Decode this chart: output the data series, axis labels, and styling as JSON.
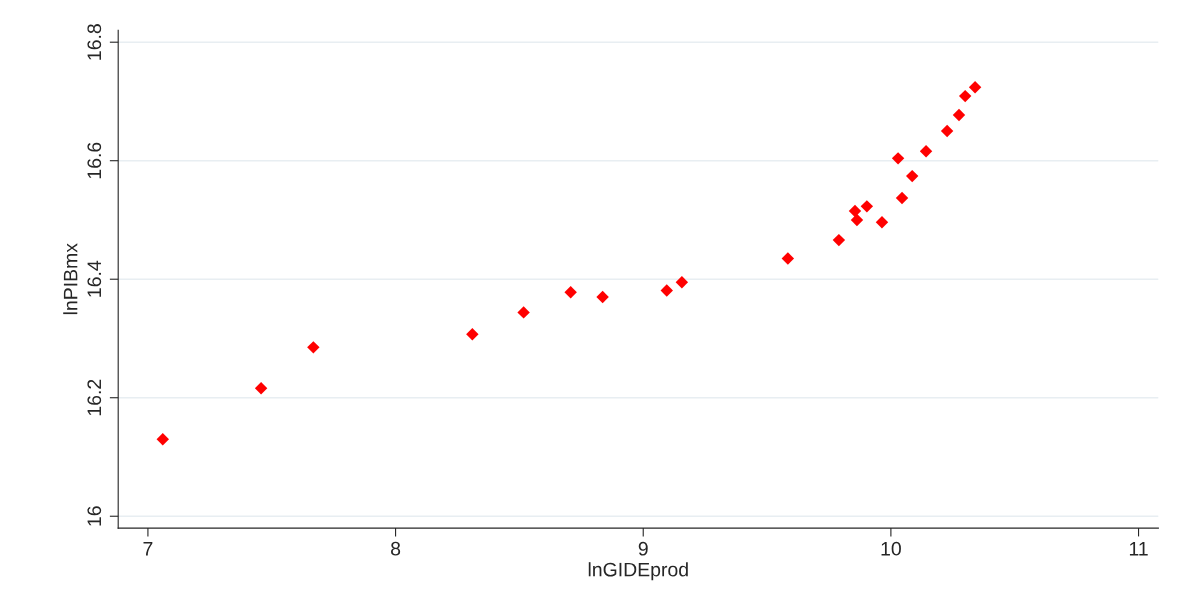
{
  "chart_data": {
    "type": "scatter",
    "xlabel": "lnGIDEprod",
    "ylabel": "lnPIBmx",
    "x": [
      7.06,
      7.457,
      7.668,
      8.31,
      8.517,
      8.707,
      8.836,
      9.095,
      9.156,
      9.584,
      9.79,
      9.855,
      9.863,
      9.903,
      9.964,
      10.029,
      10.045,
      10.086,
      10.142,
      10.227,
      10.275,
      10.3,
      10.34
    ],
    "series": [
      {
        "color": "#ff0000",
        "values": [
          16.13,
          16.216,
          16.285,
          16.307,
          16.344,
          16.378,
          16.37,
          16.381,
          16.395,
          16.435,
          16.466,
          16.515,
          16.5,
          16.523,
          16.496,
          16.604,
          16.537,
          16.574,
          16.616,
          16.65,
          16.677,
          16.709,
          16.724
        ]
      }
    ],
    "xlim": [
      6.88,
      11.08
    ],
    "ylim": [
      15.98,
      16.82
    ],
    "xticks": [
      7,
      8,
      9,
      10,
      11
    ],
    "yticks": [
      16,
      16.2,
      16.4,
      16.6,
      16.8
    ],
    "grid": "y",
    "marker": "diamond"
  }
}
